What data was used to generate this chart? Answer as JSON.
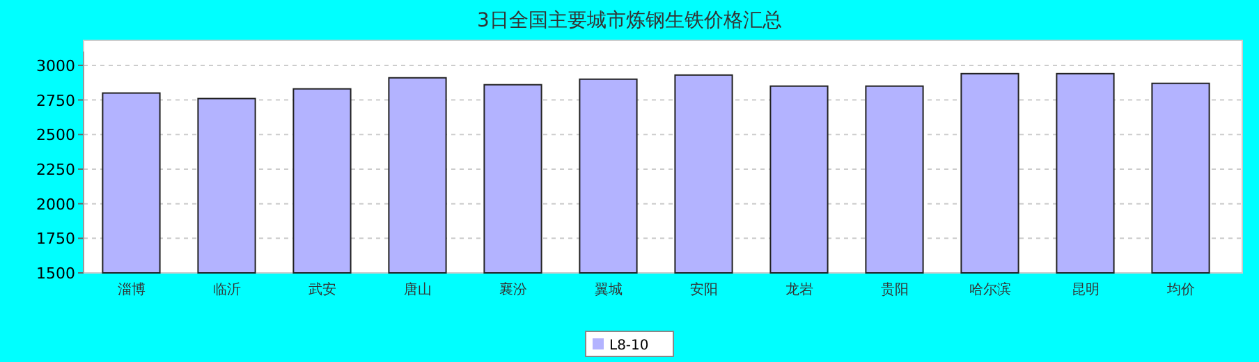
{
  "chart_data": {
    "type": "bar",
    "title": "3日全国主要城市炼钢生铁价格汇总",
    "categories": [
      "淄博",
      "临沂",
      "武安",
      "唐山",
      "襄汾",
      "翼城",
      "安阳",
      "龙岩",
      "贵阳",
      "哈尔滨",
      "昆明",
      "均价"
    ],
    "series": [
      {
        "name": "L8-10",
        "color": "#b3b3ff",
        "values": [
          2800,
          2760,
          2830,
          2910,
          2860,
          2900,
          2930,
          2850,
          2850,
          2940,
          2940,
          2870
        ]
      }
    ],
    "ylim": [
      1500,
      3100
    ],
    "yticks": [
      1500,
      1750,
      2000,
      2250,
      2500,
      2750,
      3000
    ],
    "grid": "y",
    "legend": "bottom"
  }
}
